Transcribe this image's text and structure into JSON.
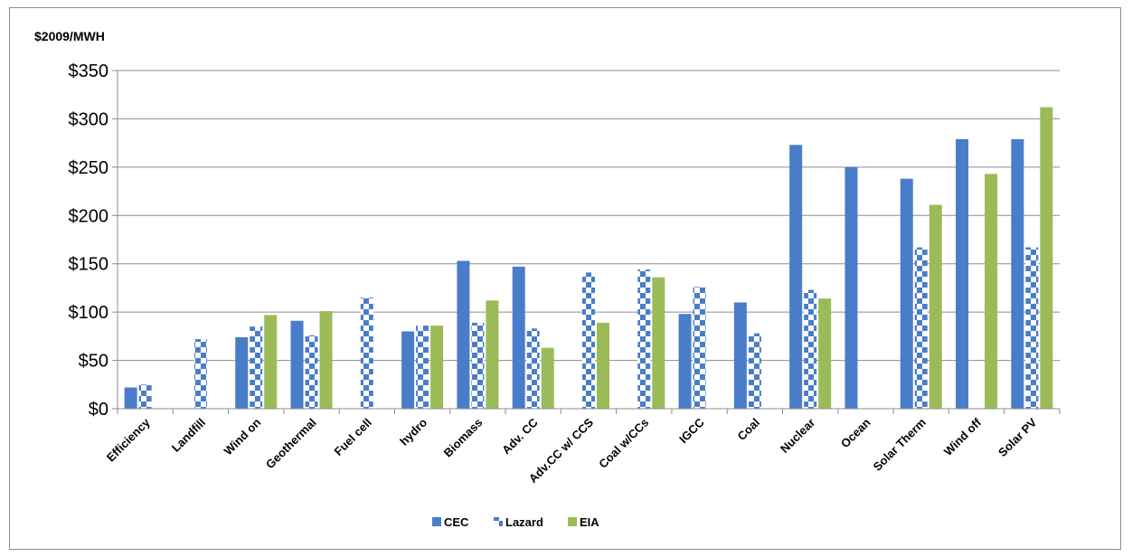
{
  "chart_data": {
    "type": "bar",
    "ylabel": "$2009/MWH",
    "ylim": [
      0,
      350
    ],
    "yticks": [
      0,
      50,
      100,
      150,
      200,
      250,
      300,
      350
    ],
    "ytick_labels": [
      "$0",
      "$50",
      "$100",
      "$150",
      "$200",
      "$250",
      "$300",
      "$350"
    ],
    "grid": true,
    "legend_position": "bottom",
    "categories": [
      "Efficiency",
      "Landfill",
      "Wind on",
      "Geothermal",
      "Fuel cell",
      "hydro",
      "Biomass",
      "Adv. CC",
      "Adv.CC w/ CCS",
      "Coal w/CCs",
      "IGCC",
      "Coal",
      "Nuclear",
      "Ocean",
      "Solar Therm",
      "Wind off",
      "Solar PV"
    ],
    "series": [
      {
        "name": "CEC",
        "color": "#4a7dc9",
        "pattern": "solid",
        "values": [
          22,
          null,
          74,
          91,
          null,
          80,
          153,
          147,
          null,
          null,
          98,
          110,
          273,
          250,
          238,
          279,
          279
        ]
      },
      {
        "name": "Lazard",
        "color": "#4a7dc9",
        "pattern": "checkered",
        "values": [
          25,
          72,
          85,
          76,
          115,
          86,
          89,
          83,
          141,
          144,
          126,
          78,
          123,
          null,
          167,
          null,
          167
        ]
      },
      {
        "name": "EIA",
        "color": "#9bbb59",
        "pattern": "solid",
        "values": [
          null,
          null,
          97,
          101,
          null,
          86,
          112,
          63,
          89,
          136,
          null,
          null,
          114,
          null,
          211,
          243,
          312
        ]
      }
    ]
  }
}
